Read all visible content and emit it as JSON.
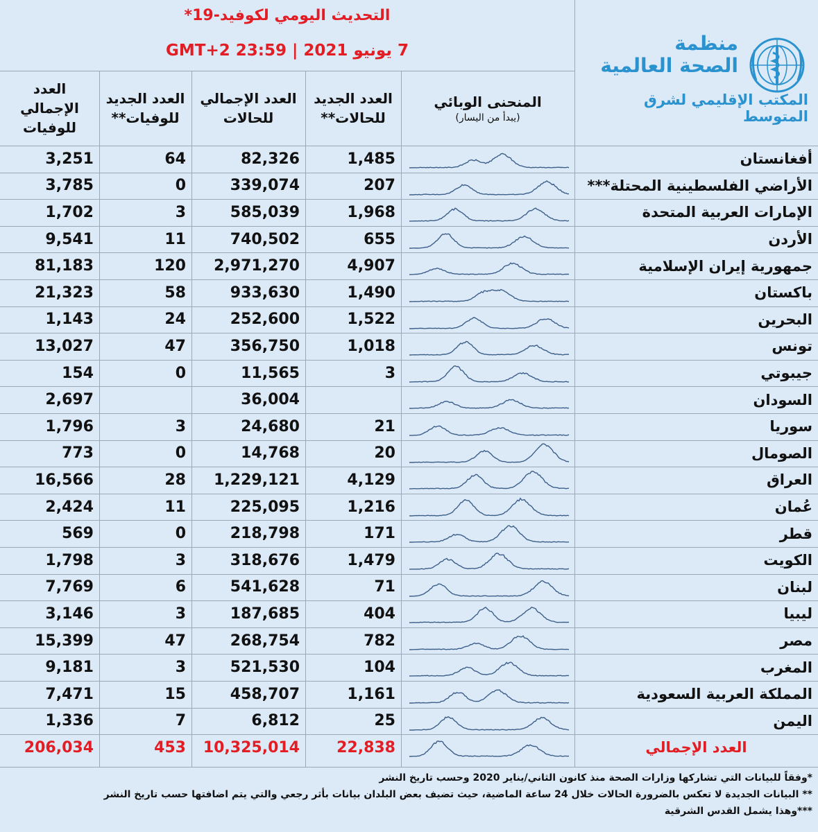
{
  "header": {
    "title": "التحديث اليومي لكوفيد-19*",
    "date": "7 يونيو 2021 | GMT+2 23:59"
  },
  "logo": {
    "org_line1": "منظمة",
    "org_line2": "الصحة العالمية",
    "office": "المكتب الإقليمي لشرق المتوسط",
    "emblem": "who-emblem-icon"
  },
  "columns": {
    "curve": "المنحنى الوبائي",
    "curve_note": "(يبدأ من اليسار)",
    "new_cases": "العدد الجديد للحالات**",
    "total_cases": "العدد الإجمالي للحالات",
    "new_deaths": "العدد الجديد للوفيات**",
    "total_deaths": "العدد الإجمالي للوفيات"
  },
  "rows": [
    {
      "country": "أفغانستان",
      "new_cases": "1,485",
      "total_cases": "82,326",
      "new_deaths": "64",
      "total_deaths": "3,251"
    },
    {
      "country": "الأراضي الفلسطينية المحتلة***",
      "new_cases": "207",
      "total_cases": "339,074",
      "new_deaths": "0",
      "total_deaths": "3,785"
    },
    {
      "country": "الإمارات العربية المتحدة",
      "new_cases": "1,968",
      "total_cases": "585,039",
      "new_deaths": "3",
      "total_deaths": "1,702"
    },
    {
      "country": "الأردن",
      "new_cases": "655",
      "total_cases": "740,502",
      "new_deaths": "11",
      "total_deaths": "9,541"
    },
    {
      "country": "جمهورية إيران الإسلامية",
      "new_cases": "4,907",
      "total_cases": "2,971,270",
      "new_deaths": "120",
      "total_deaths": "81,183"
    },
    {
      "country": "باكستان",
      "new_cases": "1,490",
      "total_cases": "933,630",
      "new_deaths": "58",
      "total_deaths": "21,323"
    },
    {
      "country": "البحرين",
      "new_cases": "1,522",
      "total_cases": "252,600",
      "new_deaths": "24",
      "total_deaths": "1,143"
    },
    {
      "country": "تونس",
      "new_cases": "1,018",
      "total_cases": "356,750",
      "new_deaths": "47",
      "total_deaths": "13,027"
    },
    {
      "country": "جيبوتي",
      "new_cases": "3",
      "total_cases": "11,565",
      "new_deaths": "0",
      "total_deaths": "154"
    },
    {
      "country": "السودان",
      "new_cases": "",
      "total_cases": "36,004",
      "new_deaths": "",
      "total_deaths": "2,697"
    },
    {
      "country": "سوريا",
      "new_cases": "21",
      "total_cases": "24,680",
      "new_deaths": "3",
      "total_deaths": "1,796"
    },
    {
      "country": "الصومال",
      "new_cases": "20",
      "total_cases": "14,768",
      "new_deaths": "0",
      "total_deaths": "773"
    },
    {
      "country": "العراق",
      "new_cases": "4,129",
      "total_cases": "1,229,121",
      "new_deaths": "28",
      "total_deaths": "16,566"
    },
    {
      "country": "عُمان",
      "new_cases": "1,216",
      "total_cases": "225,095",
      "new_deaths": "11",
      "total_deaths": "2,424"
    },
    {
      "country": "قطر",
      "new_cases": "171",
      "total_cases": "218,798",
      "new_deaths": "0",
      "total_deaths": "569"
    },
    {
      "country": "الكويت",
      "new_cases": "1,479",
      "total_cases": "318,676",
      "new_deaths": "3",
      "total_deaths": "1,798"
    },
    {
      "country": "لبنان",
      "new_cases": "71",
      "total_cases": "541,628",
      "new_deaths": "6",
      "total_deaths": "7,769"
    },
    {
      "country": "ليبيا",
      "new_cases": "404",
      "total_cases": "187,685",
      "new_deaths": "3",
      "total_deaths": "3,146"
    },
    {
      "country": "مصر",
      "new_cases": "782",
      "total_cases": "268,754",
      "new_deaths": "47",
      "total_deaths": "15,399"
    },
    {
      "country": "المغرب",
      "new_cases": "104",
      "total_cases": "521,530",
      "new_deaths": "3",
      "total_deaths": "9,181"
    },
    {
      "country": "المملكة العربية السعودية",
      "new_cases": "1,161",
      "total_cases": "458,707",
      "new_deaths": "15",
      "total_deaths": "7,471"
    },
    {
      "country": "اليمن",
      "new_cases": "25",
      "total_cases": "6,812",
      "new_deaths": "7",
      "total_deaths": "1,336"
    }
  ],
  "total": {
    "label": "العدد الإجمالي",
    "new_cases": "22,838",
    "total_cases": "10,325,014",
    "new_deaths": "453",
    "total_deaths": "206,034"
  },
  "footnotes": [
    "*وفقاً للبيانات التي تشاركها وزارات الصحة منذ كانون الثاني/يناير 2020 وحسب تاريخ النشر",
    "** البيانات الجديدة لا تعكس بالضرورة الحالات خلال 24 ساعة الماضية، حيث تضيف بعض البلدان بيانات بأثر رجعي والتي يتم اضافتها حسب تاريخ النشر",
    "***وهذا يشمل القدس الشرقية"
  ],
  "colors": {
    "accent_red": "#e21d24",
    "who_blue": "#2a92cf",
    "curve": "#3b5f8a",
    "background": "#dce9f6"
  }
}
